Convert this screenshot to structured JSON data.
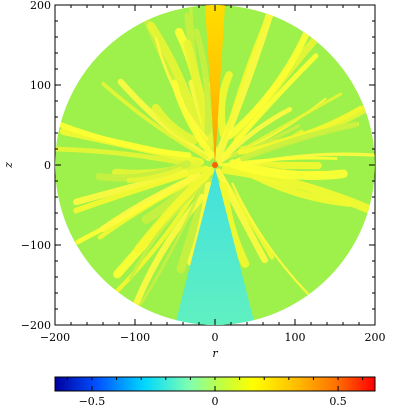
{
  "chart_data": {
    "type": "heatmap",
    "title": "",
    "xlabel": "r",
    "ylabel": "z",
    "xlim": [
      -200,
      200
    ],
    "ylim": [
      -200,
      200
    ],
    "x_ticks": [
      -200,
      -100,
      0,
      100,
      200
    ],
    "y_ticks": [
      -200,
      -100,
      0,
      100,
      200
    ],
    "x_tick_labels": [
      "−200",
      "−100",
      "0",
      "100",
      "200"
    ],
    "y_tick_labels": [
      "−200",
      "−100",
      "0",
      "100",
      "200"
    ],
    "domain": {
      "shape": "disk",
      "radius": 200
    },
    "field_description": "Bipolar pattern: positive values (yellow–orange) in a narrow cone along +z, negative values (cyan) in a cone along −z, yellow/green filamentary structure elsewhere.",
    "colorbar": {
      "range": [
        -0.65,
        0.65
      ],
      "ticks": [
        -0.5,
        0,
        0.5
      ],
      "tick_labels": [
        "−0.5",
        "0",
        "0.5"
      ],
      "colormap": "rainbow (blue → cyan → green → yellow → orange → red)",
      "colors": [
        "#0000a0",
        "#0050ff",
        "#00d8ff",
        "#80ffb0",
        "#c0ff40",
        "#ffff00",
        "#ffc000",
        "#ff7000",
        "#ff0000"
      ]
    },
    "grid": false,
    "legend": "none"
  }
}
